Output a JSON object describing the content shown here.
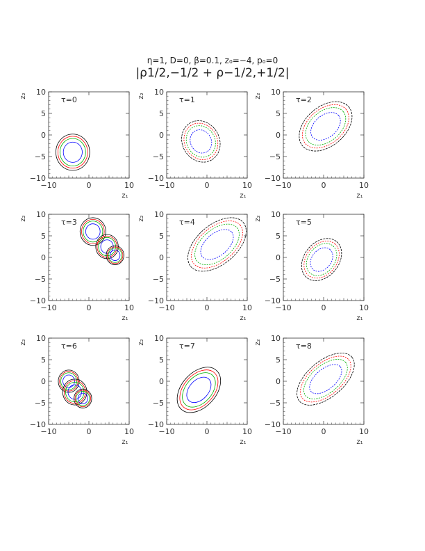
{
  "figure": {
    "title": "η=1, D=0, β=0.1, z₀=−4, p₀=0",
    "subtitle": "|ρ1/2,−1/2 + ρ−1/2,+1/2|"
  },
  "colors": {
    "black": "#000000",
    "red": "#ff0000",
    "green": "#00b000",
    "blue": "#0000ff",
    "frame": "#333333"
  },
  "chart_data": [
    {
      "type": "contour",
      "label": "τ=0",
      "xlabel": "z₁",
      "ylabel": "z₂",
      "xlim": [
        -10,
        10
      ],
      "ylim": [
        -10,
        10
      ],
      "xticks": [
        "−10",
        "0",
        "10"
      ],
      "yticks": [
        "10",
        "5",
        "0",
        "−5",
        "−10"
      ],
      "lobes": [
        {
          "cx": -4,
          "cy": -4,
          "rx": 4.2,
          "ry": 4.2,
          "angle": 0
        }
      ],
      "dotted": false
    },
    {
      "type": "contour",
      "label": "τ=1",
      "xlabel": "z₁",
      "ylabel": "z₂",
      "xlim": [
        -10,
        10
      ],
      "ylim": [
        -10,
        10
      ],
      "xticks": [
        "−10",
        "0",
        "10"
      ],
      "yticks": [
        "10",
        "5",
        "0",
        "−5",
        "−10"
      ],
      "lobes": [
        {
          "cx": -1.5,
          "cy": -1.5,
          "rx": 5.3,
          "ry": 4.3,
          "angle": 60
        }
      ],
      "dotted": true
    },
    {
      "type": "contour",
      "label": "τ=2",
      "xlabel": "z₁",
      "ylabel": "z₂",
      "xlim": [
        -10,
        10
      ],
      "ylim": [
        -10,
        10
      ],
      "xticks": [
        "−10",
        "0",
        "10"
      ],
      "yticks": [
        "10",
        "5",
        "0",
        "−5",
        "−10"
      ],
      "lobes": [
        {
          "cx": 0.5,
          "cy": 2,
          "rx": 7.5,
          "ry": 4.6,
          "angle": -40
        }
      ],
      "dotted": true
    },
    {
      "type": "contour",
      "label": "τ=3",
      "xlabel": "z₁",
      "ylabel": "z₂",
      "xlim": [
        -10,
        10
      ],
      "ylim": [
        -10,
        10
      ],
      "xticks": [
        "−10",
        "0",
        "10"
      ],
      "yticks": [
        "10",
        "5",
        "0",
        "−5",
        "−10"
      ],
      "lobes": [
        {
          "cx": 1,
          "cy": 6,
          "rx": 3.2,
          "ry": 3.2,
          "angle": 0
        },
        {
          "cx": 4.5,
          "cy": 2.5,
          "rx": 2.8,
          "ry": 2.8,
          "angle": 0
        },
        {
          "cx": 6.5,
          "cy": 0.5,
          "rx": 2.2,
          "ry": 2.2,
          "angle": 0
        }
      ],
      "dotted": false
    },
    {
      "type": "contour",
      "label": "τ=4",
      "xlabel": "z₁",
      "ylabel": "z₂",
      "xlim": [
        -10,
        10
      ],
      "ylim": [
        -10,
        10
      ],
      "xticks": [
        "−10",
        "0",
        "10"
      ],
      "yticks": [
        "10",
        "5",
        "0",
        "−5",
        "−10"
      ],
      "lobes": [
        {
          "cx": 2.5,
          "cy": 3,
          "rx": 8.5,
          "ry": 4.6,
          "angle": -40
        }
      ],
      "dotted": true
    },
    {
      "type": "contour",
      "label": "τ=5",
      "xlabel": "z₁",
      "ylabel": "z₂",
      "xlim": [
        -10,
        10
      ],
      "ylim": [
        -10,
        10
      ],
      "xticks": [
        "−10",
        "0",
        "10"
      ],
      "yticks": [
        "10",
        "5",
        "0",
        "−5",
        "−10"
      ],
      "lobes": [
        {
          "cx": -0.5,
          "cy": -0.5,
          "rx": 5.8,
          "ry": 4.0,
          "angle": -50
        }
      ],
      "dotted": true
    },
    {
      "type": "contour",
      "label": "τ=6",
      "xlabel": "z₁",
      "ylabel": "z₂",
      "xlim": [
        -10,
        10
      ],
      "ylim": [
        -10,
        10
      ],
      "xticks": [
        "−10",
        "0",
        "10"
      ],
      "yticks": [
        "10",
        "5",
        "0",
        "−5",
        "−10"
      ],
      "lobes": [
        {
          "cx": -5,
          "cy": 0,
          "rx": 2.6,
          "ry": 2.6,
          "angle": 0
        },
        {
          "cx": -3.5,
          "cy": -2.5,
          "rx": 3.0,
          "ry": 3.0,
          "angle": 0
        },
        {
          "cx": -1.5,
          "cy": -4,
          "rx": 2.2,
          "ry": 2.2,
          "angle": 0
        }
      ],
      "dotted": false
    },
    {
      "type": "contour",
      "label": "τ=7",
      "xlabel": "z₁",
      "ylabel": "z₂",
      "xlim": [
        -10,
        10
      ],
      "ylim": [
        -10,
        10
      ],
      "xticks": [
        "−10",
        "0",
        "10"
      ],
      "yticks": [
        "10",
        "5",
        "0",
        "−5",
        "−10"
      ],
      "lobes": [
        {
          "cx": -2,
          "cy": -2,
          "rx": 6.5,
          "ry": 4.0,
          "angle": -48
        }
      ],
      "dotted": false
    },
    {
      "type": "contour",
      "label": "τ=8",
      "xlabel": "z₁",
      "ylabel": "z₂",
      "xlim": [
        -10,
        10
      ],
      "ylim": [
        -10,
        10
      ],
      "xticks": [
        "−10",
        "0",
        "10"
      ],
      "yticks": [
        "10",
        "5",
        "0",
        "−5",
        "−10"
      ],
      "lobes": [
        {
          "cx": 0.5,
          "cy": 0.5,
          "rx": 8.5,
          "ry": 4.2,
          "angle": -40
        }
      ],
      "dotted": true
    }
  ]
}
